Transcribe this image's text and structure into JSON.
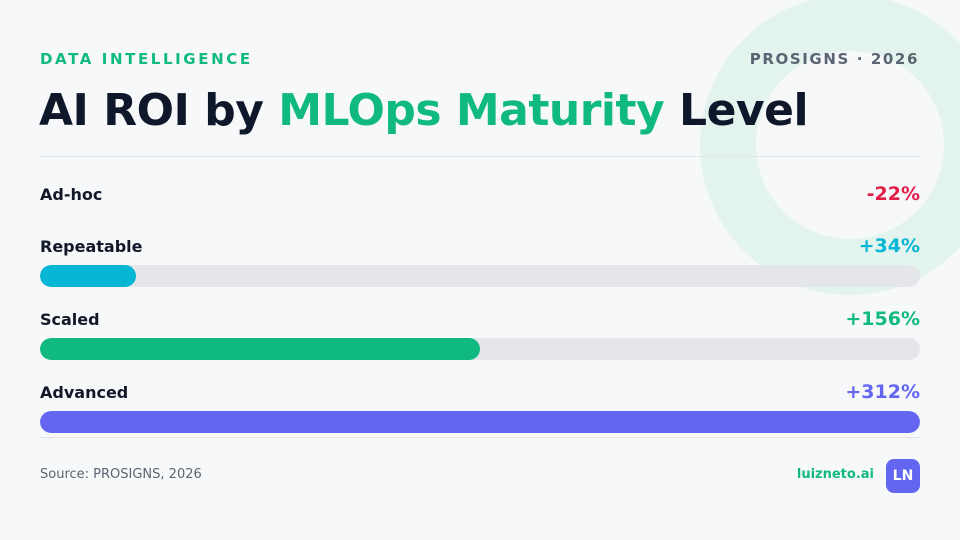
{
  "header": {
    "eyebrow": "DATA INTELLIGENCE",
    "brand_tag": "PROSIGNS · 2026",
    "title_before": "AI ROI by ",
    "title_highlight": "MLOps Maturity",
    "title_after": " Level"
  },
  "chart_data": {
    "type": "bar",
    "orientation": "horizontal",
    "categories": [
      "Ad-hoc",
      "Repeatable",
      "Scaled",
      "Advanced"
    ],
    "values": [
      -22,
      34,
      156,
      312
    ],
    "value_labels": [
      "-22%",
      "+34%",
      "+156%",
      "+312%"
    ],
    "unit": "%",
    "xlim": [
      0,
      312
    ],
    "colors": [
      "#e11d48",
      "#06b6d4",
      "#10b981",
      "#6366f1"
    ],
    "track_color": "#e4e6ea",
    "grid": false
  },
  "footer": {
    "source": "Source: PROSIGNS, 2026",
    "site": "luizneto.ai",
    "logo_text": "LN"
  },
  "colors": {
    "accent": "#10b981",
    "title": "#0f172a",
    "background": "#f7f8fa"
  }
}
